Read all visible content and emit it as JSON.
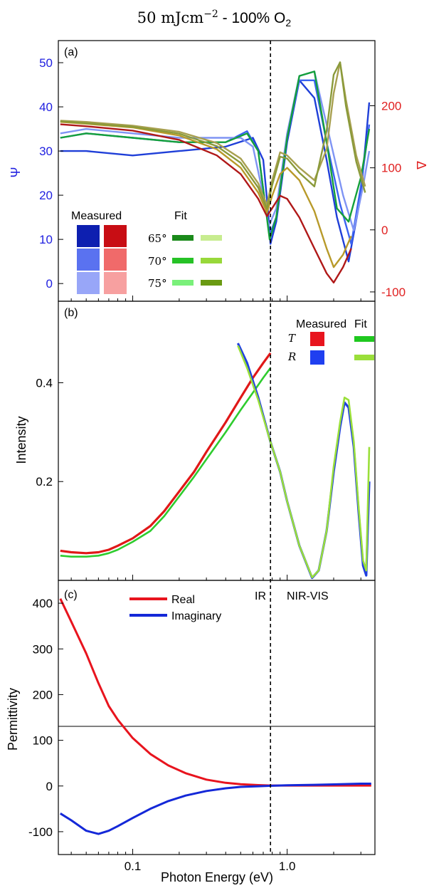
{
  "figure": {
    "title_prefix": "50 mJcm",
    "title_exp": "−2",
    "title_mid": " - 100% O",
    "title_sub": "2",
    "xlabel": "Photon Energy (eV)",
    "x_ticks": [
      "0.1",
      "1.0"
    ]
  },
  "colors": {
    "psi_axis": "#1f1fe0",
    "delta_axis": "#e01f1f",
    "real": "#e8141e",
    "imag": "#1428d8",
    "vline": "#000000"
  },
  "chart_data": [
    {
      "type": "line",
      "panel": "(a)",
      "x_scale": "log",
      "xlim": [
        0.033,
        3.7
      ],
      "ylabel_left": "Ψ",
      "ylabel_right": "Δ",
      "ylim_left": [
        -4,
        55
      ],
      "ylim_right": [
        -115,
        305
      ],
      "y_ticks_left": [
        "0",
        "10",
        "20",
        "30",
        "40",
        "50"
      ],
      "y_ticks_right": [
        "-100",
        "0",
        "100",
        "200"
      ],
      "vline_x": 0.78,
      "legend": {
        "measured_label": "Measured",
        "fit_label": "Fit",
        "angles": [
          "65°",
          "70°",
          "75°"
        ],
        "measured_psi_colors": [
          "#0d1fb0",
          "#5a72f0",
          "#98a6f8"
        ],
        "measured_delta_colors": [
          "#c80d14",
          "#f06a6a",
          "#f7a0a0"
        ],
        "fit_psi_colors": [
          "#1a8a1a",
          "#26c226",
          "#7af07a"
        ],
        "fit_delta_colors": [
          "#c7ec8f",
          "#98d83a",
          "#6a9a12"
        ]
      },
      "series": [
        {
          "axis": "left",
          "color": "#1f3fd8",
          "x": [
            0.034,
            0.05,
            0.1,
            0.2,
            0.4,
            0.6,
            0.7,
            0.75,
            0.78,
            0.85,
            1.0,
            1.2,
            1.5,
            1.8,
            2.1,
            2.5,
            3.0,
            3.4
          ],
          "y": [
            30,
            30,
            29,
            30,
            31,
            33,
            28,
            17,
            9,
            14,
            32,
            46,
            42,
            28,
            15,
            5,
            20,
            41
          ]
        },
        {
          "axis": "left",
          "color": "#3b63f0",
          "x": [
            0.034,
            0.05,
            0.1,
            0.2,
            0.4,
            0.55,
            0.65,
            0.72,
            0.77,
            0.85,
            1.0,
            1.2,
            1.5,
            1.8,
            2.2,
            2.6,
            3.0,
            3.4
          ],
          "y": [
            33,
            34,
            33,
            32,
            32,
            34.5,
            30,
            18,
            11,
            15,
            33,
            46,
            46,
            32,
            18,
            9,
            22,
            36
          ]
        },
        {
          "axis": "left",
          "color": "#7f94f4",
          "x": [
            0.034,
            0.05,
            0.1,
            0.2,
            0.4,
            0.5,
            0.6,
            0.7,
            0.76,
            0.85,
            1.0,
            1.2,
            1.5,
            1.8,
            2.3,
            2.7,
            3.1,
            3.4
          ],
          "y": [
            34,
            35,
            34,
            33,
            33,
            33,
            31,
            20,
            13,
            17,
            34,
            47,
            48,
            36,
            20,
            12,
            22,
            30
          ]
        },
        {
          "axis": "left",
          "color": "#14a03a",
          "x": [
            0.034,
            0.05,
            0.1,
            0.2,
            0.4,
            0.55,
            0.65,
            0.72,
            0.77,
            0.85,
            1.0,
            1.2,
            1.5,
            1.8,
            2.1,
            2.5,
            3.0,
            3.4
          ],
          "y": [
            33,
            34,
            33,
            32,
            32,
            34,
            30,
            18,
            10,
            15,
            33,
            47,
            48,
            32,
            17,
            14,
            24,
            35
          ]
        },
        {
          "axis": "right",
          "color": "#b01818",
          "x": [
            0.034,
            0.05,
            0.1,
            0.2,
            0.35,
            0.5,
            0.65,
            0.74,
            0.8,
            0.9,
            1.0,
            1.2,
            1.5,
            1.8,
            2.0,
            2.3,
            2.6
          ],
          "y": [
            170,
            167,
            160,
            145,
            120,
            90,
            50,
            22,
            35,
            55,
            50,
            20,
            -30,
            -70,
            -85,
            -60,
            -30
          ]
        },
        {
          "axis": "right",
          "color": "#b89a2a",
          "x": [
            0.034,
            0.05,
            0.1,
            0.2,
            0.35,
            0.5,
            0.65,
            0.74,
            0.8,
            0.9,
            1.0,
            1.2,
            1.5,
            1.8,
            2.0,
            2.3,
            2.6
          ],
          "y": [
            174,
            171,
            165,
            152,
            130,
            100,
            60,
            28,
            55,
            90,
            100,
            80,
            30,
            -30,
            -60,
            -40,
            -10
          ]
        },
        {
          "axis": "right",
          "color": "#a8a050",
          "x": [
            0.034,
            0.05,
            0.1,
            0.2,
            0.35,
            0.5,
            0.65,
            0.74,
            0.8,
            0.9,
            1.0,
            1.2,
            1.5,
            1.8,
            2.0,
            2.2,
            2.4,
            2.8,
            3.2
          ],
          "y": [
            176,
            174,
            168,
            158,
            140,
            115,
            75,
            40,
            80,
            125,
            120,
            100,
            80,
            130,
            220,
            270,
            210,
            120,
            70
          ]
        },
        {
          "axis": "right",
          "color": "#8a9a3a",
          "x": [
            0.034,
            0.05,
            0.1,
            0.2,
            0.35,
            0.5,
            0.65,
            0.74,
            0.8,
            0.9,
            1.0,
            1.2,
            1.5,
            1.8,
            2.0,
            2.2,
            2.4,
            2.8,
            3.2
          ],
          "y": [
            175,
            172,
            166,
            155,
            135,
            108,
            68,
            34,
            72,
            118,
            115,
            92,
            70,
            160,
            250,
            270,
            200,
            110,
            60
          ]
        }
      ]
    },
    {
      "type": "line",
      "panel": "(b)",
      "x_scale": "log",
      "xlim": [
        0.033,
        3.7
      ],
      "ylabel": "Intensity",
      "ylim": [
        0.0,
        0.565
      ],
      "y_ticks": [
        "0.2",
        "0.4"
      ],
      "vline_x": 0.78,
      "legend": {
        "measured_label": "Measured",
        "fit_label": "Fit",
        "rows": [
          "T",
          "R"
        ],
        "measured_colors": [
          "#e8141e",
          "#1f3ff0"
        ],
        "fit_colors": [
          "#1fc81f",
          "#9adf3a"
        ]
      },
      "series": [
        {
          "name": "T",
          "kind": "measured",
          "color": "#e01818",
          "x": [
            0.034,
            0.04,
            0.05,
            0.06,
            0.07,
            0.08,
            0.1,
            0.13,
            0.16,
            0.2,
            0.25,
            0.3,
            0.4,
            0.5,
            0.6,
            0.7,
            0.78
          ],
          "y": [
            0.06,
            0.057,
            0.055,
            0.057,
            0.062,
            0.07,
            0.085,
            0.11,
            0.14,
            0.18,
            0.22,
            0.26,
            0.32,
            0.37,
            0.41,
            0.44,
            0.46
          ]
        },
        {
          "name": "T",
          "kind": "fit",
          "color": "#2ecc2e",
          "x": [
            0.034,
            0.04,
            0.05,
            0.06,
            0.07,
            0.08,
            0.1,
            0.13,
            0.16,
            0.2,
            0.25,
            0.3,
            0.4,
            0.5,
            0.6,
            0.7,
            0.78
          ],
          "y": [
            0.05,
            0.048,
            0.048,
            0.05,
            0.055,
            0.062,
            0.078,
            0.1,
            0.13,
            0.17,
            0.21,
            0.245,
            0.3,
            0.345,
            0.38,
            0.41,
            0.43
          ]
        },
        {
          "name": "R",
          "kind": "measured",
          "color": "#1f3fe0",
          "x": [
            0.48,
            0.55,
            0.65,
            0.78,
            0.9,
            1.0,
            1.2,
            1.45,
            1.6,
            1.8,
            2.0,
            2.2,
            2.35,
            2.5,
            2.7,
            2.9,
            3.1,
            3.25,
            3.4
          ],
          "y": [
            0.48,
            0.44,
            0.37,
            0.28,
            0.22,
            0.16,
            0.07,
            0.005,
            0.02,
            0.1,
            0.22,
            0.31,
            0.36,
            0.35,
            0.27,
            0.14,
            0.03,
            0.01,
            0.2
          ]
        },
        {
          "name": "R",
          "kind": "fit",
          "color": "#9adf3a",
          "x": [
            0.48,
            0.55,
            0.65,
            0.78,
            0.9,
            1.0,
            1.2,
            1.45,
            1.6,
            1.8,
            2.0,
            2.2,
            2.35,
            2.5,
            2.7,
            2.9,
            3.1,
            3.25,
            3.4
          ],
          "y": [
            0.475,
            0.43,
            0.365,
            0.28,
            0.22,
            0.16,
            0.07,
            0.006,
            0.02,
            0.1,
            0.23,
            0.32,
            0.37,
            0.365,
            0.28,
            0.15,
            0.04,
            0.02,
            0.27
          ]
        }
      ]
    },
    {
      "type": "line",
      "panel": "(c)",
      "x_scale": "log",
      "xlim": [
        0.033,
        3.7
      ],
      "ylabel": "Permittivity",
      "ylim": [
        -150,
        450
      ],
      "y_ticks": [
        "-100",
        "0",
        "100",
        "200",
        "300",
        "400"
      ],
      "vline_x": 0.78,
      "region_labels": [
        "IR",
        "NIR-VIS"
      ],
      "series": [
        {
          "name": "Real",
          "color": "#e8141e",
          "x": [
            0.034,
            0.04,
            0.05,
            0.06,
            0.07,
            0.08,
            0.1,
            0.13,
            0.17,
            0.22,
            0.3,
            0.4,
            0.5,
            0.65,
            0.8,
            1.0,
            1.5,
            2.0,
            3.0,
            3.5
          ],
          "y": [
            410,
            360,
            290,
            225,
            175,
            145,
            105,
            70,
            45,
            28,
            14,
            7,
            4,
            2,
            1,
            1,
            1,
            1,
            1,
            1
          ]
        },
        {
          "name": "Imaginary",
          "color": "#1428d8",
          "x": [
            0.034,
            0.04,
            0.05,
            0.06,
            0.07,
            0.08,
            0.1,
            0.13,
            0.17,
            0.22,
            0.3,
            0.4,
            0.5,
            0.65,
            0.8,
            1.0,
            1.5,
            2.0,
            3.0,
            3.5
          ],
          "y": [
            -60,
            -75,
            -98,
            -105,
            -98,
            -88,
            -70,
            -50,
            -33,
            -21,
            -11,
            -5,
            -2,
            -0.5,
            0.5,
            1.5,
            2.5,
            3.5,
            5,
            5
          ]
        }
      ]
    }
  ]
}
